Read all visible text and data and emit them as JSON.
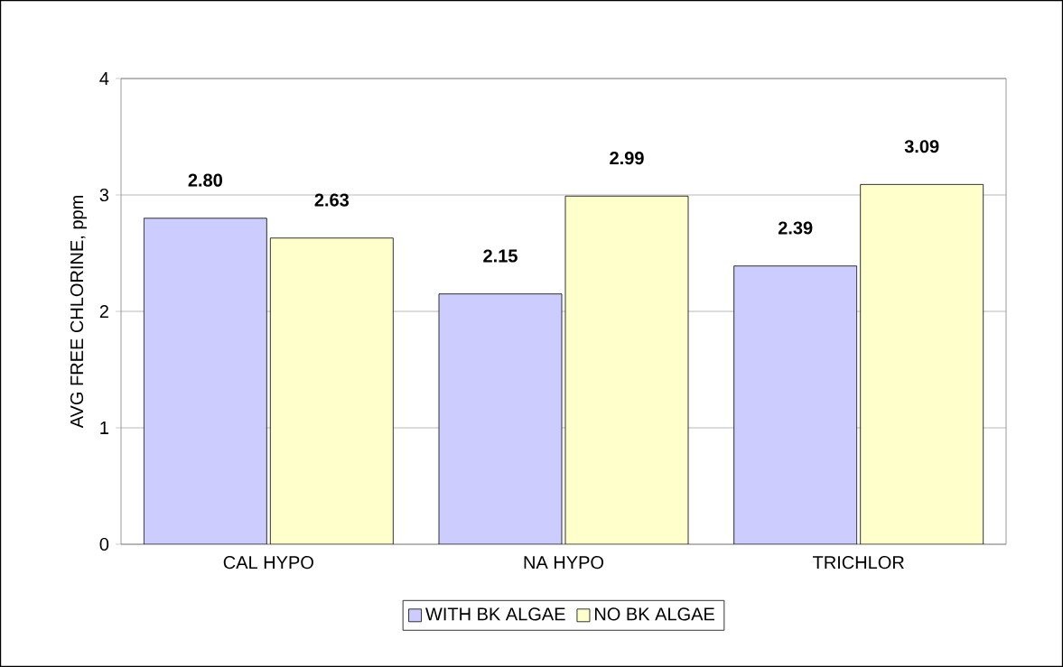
{
  "chart_data": {
    "type": "bar",
    "ylabel": "AVG FREE CHLORINE, ppm",
    "categories": [
      "CAL HYPO",
      "NA HYPO",
      "TRICHLOR"
    ],
    "series": [
      {
        "name": "WITH BK ALGAE",
        "color": "#ccccff",
        "values": [
          2.8,
          2.15,
          2.39
        ],
        "value_labels": [
          "2.80",
          "2.15",
          "2.39"
        ]
      },
      {
        "name": "NO BK ALGAE",
        "color": "#ffffcc",
        "values": [
          2.63,
          2.99,
          3.09
        ],
        "value_labels": [
          "2.63",
          "2.99",
          "3.09"
        ]
      }
    ],
    "ylim": [
      0,
      4
    ],
    "yticks": [
      0,
      1,
      2,
      3,
      4
    ],
    "grid": "y",
    "legend": "bottom"
  }
}
